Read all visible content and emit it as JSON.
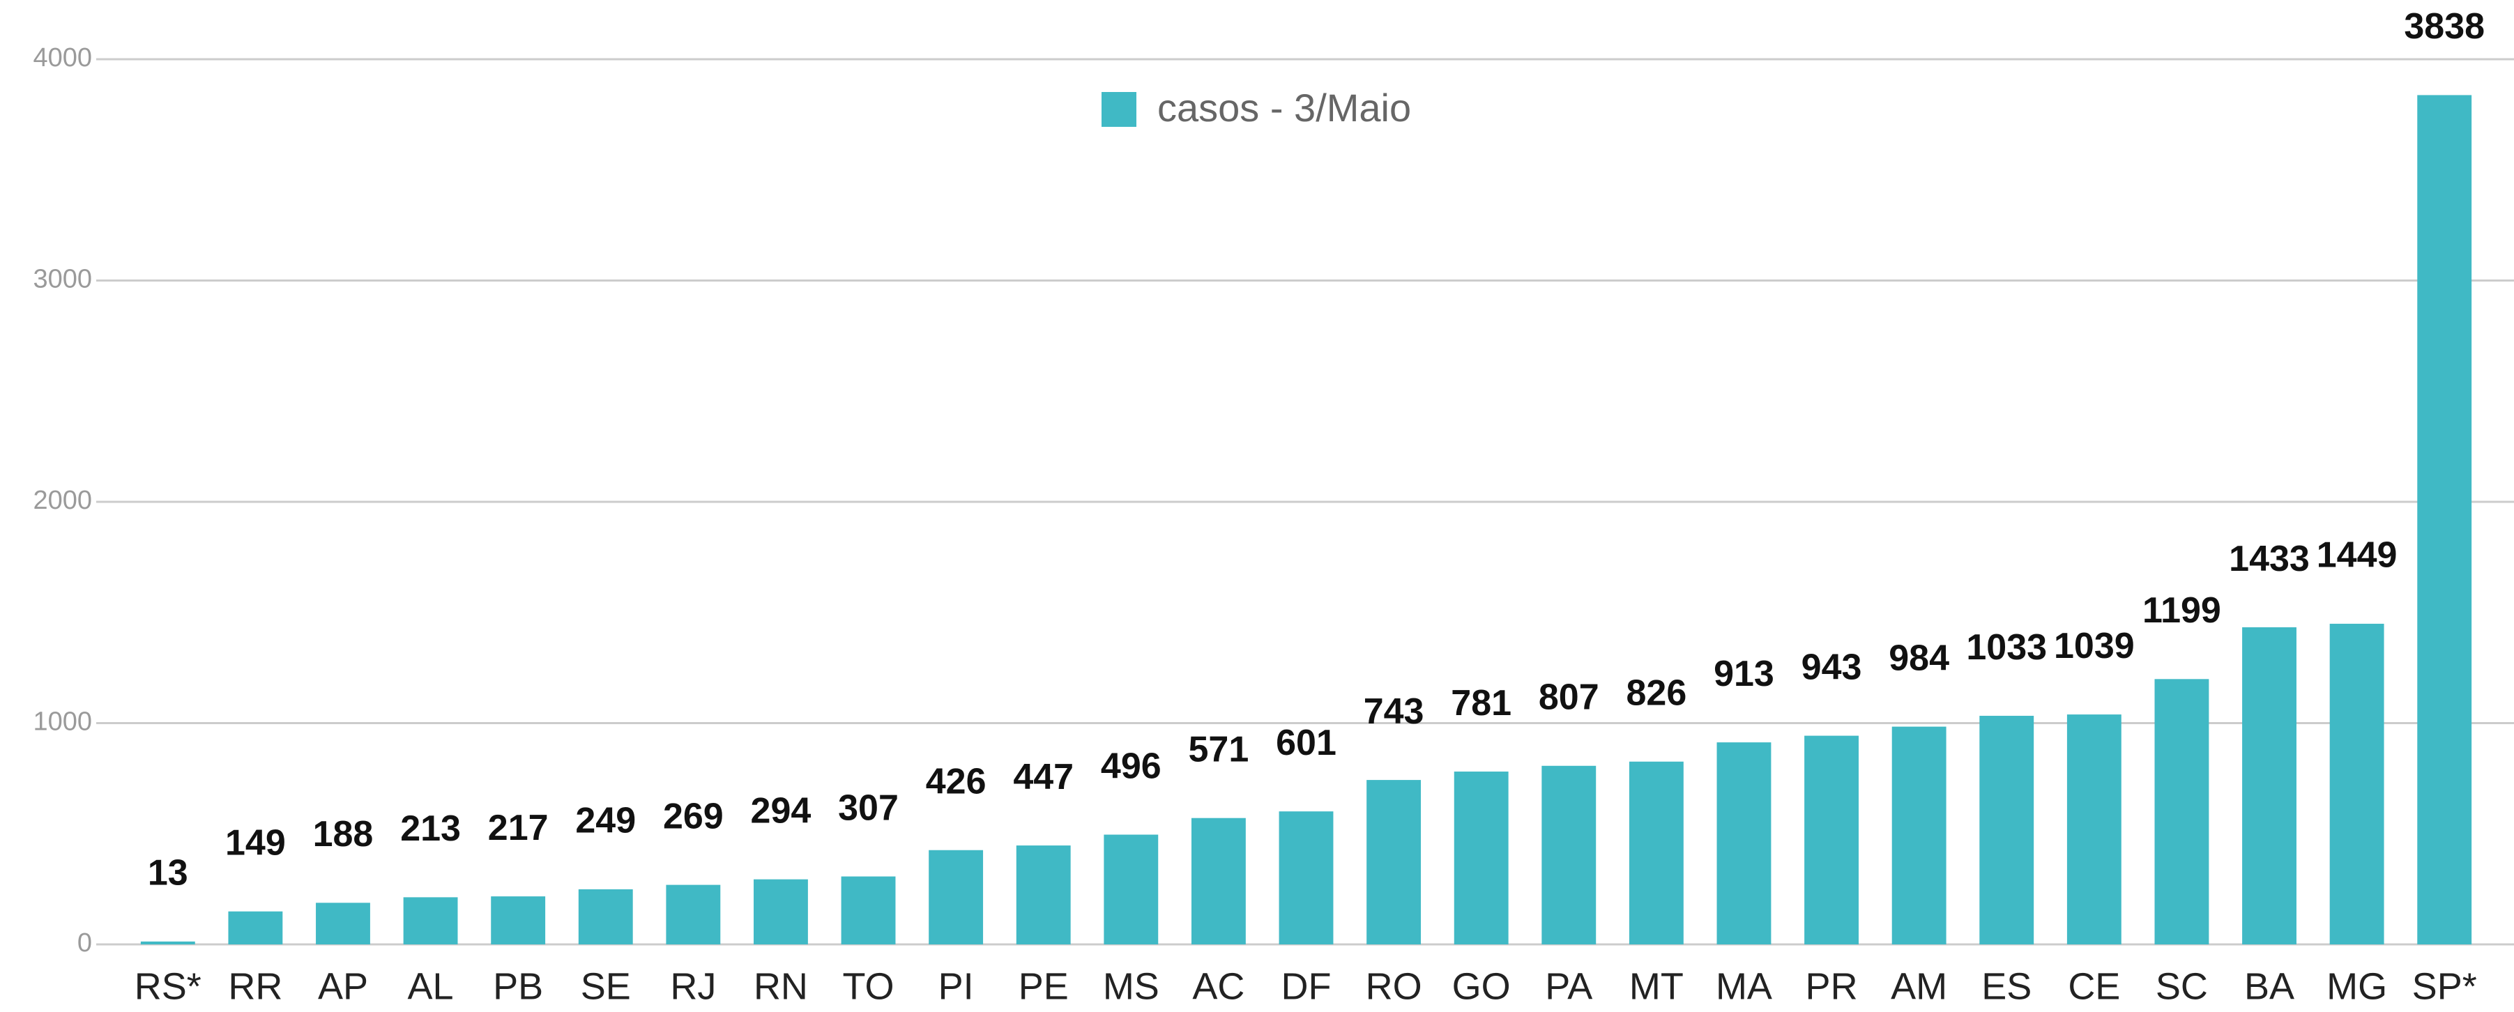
{
  "chart_data": {
    "type": "bar",
    "categories": [
      "RS*",
      "RR",
      "AP",
      "AL",
      "PB",
      "SE",
      "RJ",
      "RN",
      "TO",
      "PI",
      "PE",
      "MS",
      "AC",
      "DF",
      "RO",
      "GO",
      "PA",
      "MT",
      "MA",
      "PR",
      "AM",
      "ES",
      "CE",
      "SC",
      "BA",
      "MG",
      "SP*"
    ],
    "series": [
      {
        "name": "casos - 3/Maio",
        "color": "#40b9c5",
        "values": [
          13,
          149,
          188,
          213,
          217,
          249,
          269,
          294,
          307,
          426,
          447,
          496,
          571,
          601,
          743,
          781,
          807,
          826,
          913,
          943,
          984,
          1033,
          1039,
          1199,
          1433,
          1449,
          3838
        ]
      }
    ],
    "ylim": [
      0,
      4000
    ],
    "yticks": [
      0,
      1000,
      2000,
      3000,
      4000
    ],
    "grid": true,
    "legend": "top"
  }
}
